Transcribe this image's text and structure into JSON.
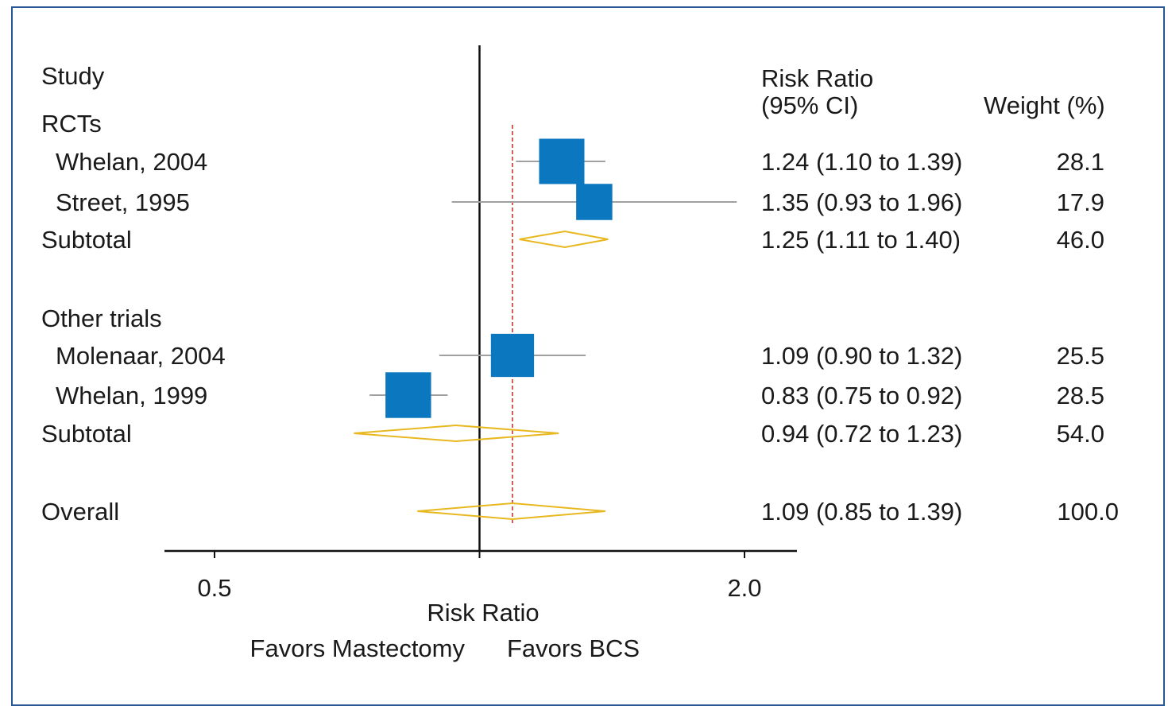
{
  "chart_data": {
    "type": "forest",
    "headers": {
      "study": "Study",
      "ratio_line1": "Risk Ratio",
      "ratio_line2": "(95% CI)",
      "weight": "Weight (%)"
    },
    "rows": [
      {
        "label": "RCTs",
        "kind": "group"
      },
      {
        "label": "Whelan, 2004",
        "kind": "study",
        "estimate": 1.24,
        "lower": 1.1,
        "upper": 1.39,
        "ci_text": "1.24 (1.10 to 1.39)",
        "weight_text": "28.1",
        "weight": 28.1
      },
      {
        "label": "Street, 1995",
        "kind": "study",
        "estimate": 1.35,
        "lower": 0.93,
        "upper": 1.96,
        "ci_text": "1.35 (0.93 to 1.96)",
        "weight_text": "17.9",
        "weight": 17.9
      },
      {
        "label": "Subtotal",
        "kind": "subtotal",
        "estimate": 1.25,
        "lower": 1.11,
        "upper": 1.4,
        "ci_text": "1.25 (1.11 to 1.40)",
        "weight_text": "46.0"
      },
      {
        "label": "Other trials",
        "kind": "group"
      },
      {
        "label": "Molenaar, 2004",
        "kind": "study",
        "estimate": 1.09,
        "lower": 0.9,
        "upper": 1.32,
        "ci_text": "1.09 (0.90 to 1.32)",
        "weight_text": "25.5",
        "weight": 25.5
      },
      {
        "label": "Whelan, 1999",
        "kind": "study",
        "estimate": 0.83,
        "lower": 0.75,
        "upper": 0.92,
        "ci_text": "0.83 (0.75 to 0.92)",
        "weight_text": "28.5",
        "weight": 28.5
      },
      {
        "label": "Subtotal",
        "kind": "subtotal",
        "estimate": 0.94,
        "lower": 0.72,
        "upper": 1.23,
        "ci_text": "0.94 (0.72 to 1.23)",
        "weight_text": "54.0"
      },
      {
        "label": "Overall",
        "kind": "overall",
        "estimate": 1.09,
        "lower": 0.85,
        "upper": 1.39,
        "ci_text": "1.09 (0.85 to 1.39)",
        "weight_text": "100.0"
      }
    ],
    "x_scale": "log",
    "xlim": [
      0.46,
      2.15
    ],
    "x_ticks": [
      {
        "value": 0.5,
        "label": "0.5"
      },
      {
        "value": 2.0,
        "label": "2.0"
      }
    ],
    "null_line": 1.0,
    "reference_line": 1.09,
    "xlabel": "Risk Ratio",
    "favors_left": "Favors Mastectomy",
    "favors_right": "Favors BCS",
    "colors": {
      "marker": "#0b77bf",
      "ci_line": "#a0a0a0",
      "diamond": "#e8b820",
      "reference_line": "#c0392b",
      "axis": "#111111",
      "frame": "#2b5797"
    }
  }
}
